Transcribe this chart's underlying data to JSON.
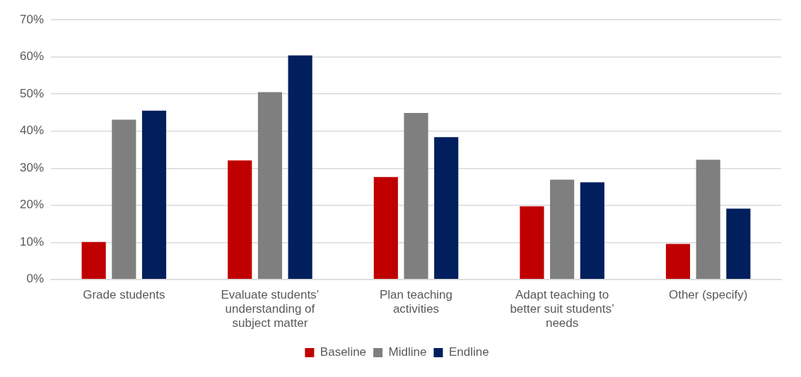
{
  "chart_data": {
    "type": "bar",
    "categories": [
      "Grade students",
      "Evaluate students’ understanding of subject matter",
      "Plan teaching activities",
      "Adapt teaching to better suit students’ needs",
      "Other (specify)"
    ],
    "series": [
      {
        "name": "Baseline",
        "color": "#c00000",
        "values": [
          10.1,
          32.1,
          27.6,
          19.7,
          9.6
        ]
      },
      {
        "name": "Midline",
        "color": "#7f7f7f",
        "values": [
          43.1,
          50.5,
          44.9,
          26.9,
          32.3
        ]
      },
      {
        "name": "Endline",
        "color": "#001f5c",
        "values": [
          45.5,
          60.4,
          38.4,
          26.2,
          19.1
        ]
      }
    ],
    "ylim": [
      0,
      70
    ],
    "yticks": [
      {
        "value": 0,
        "label": "0%"
      },
      {
        "value": 10,
        "label": "10%"
      },
      {
        "value": 20,
        "label": "20%"
      },
      {
        "value": 30,
        "label": "30%"
      },
      {
        "value": 40,
        "label": "40%"
      },
      {
        "value": 50,
        "label": "50%"
      },
      {
        "value": 60,
        "label": "60%"
      },
      {
        "value": 70,
        "label": "70%"
      }
    ],
    "grid": "y",
    "legend": "bottom"
  }
}
